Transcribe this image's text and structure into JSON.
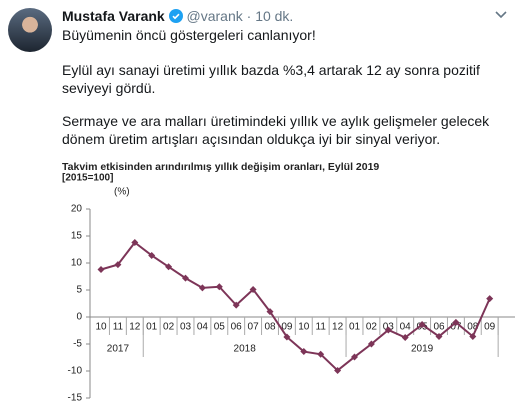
{
  "tweet": {
    "name": "Mustafa Varank",
    "handle": "@varank",
    "separator": "·",
    "time": "10 dk.",
    "paragraphs": [
      "Büyümenin öncü göstergeleri canlanıyor!",
      "Eylül ayı sanayi üretimi yıllık bazda %3,4 artarak 12 ay sonra pozitif seviyeyi gördü.",
      "Sermaye ve ara malları üretimindeki yıllık ve aylık gelişmeler gelecek dönem üretim artışları açısından oldukça iyi bir sinyal veriyor."
    ]
  },
  "chart_data": {
    "type": "line",
    "title": "Takvim etkisinden arındırılmış yıllık değişim oranları, Eylül 2019",
    "subtitle": "[2015=100]",
    "y_label": "(%)",
    "categories": [
      "10",
      "11",
      "12",
      "01",
      "02",
      "03",
      "04",
      "05",
      "06",
      "07",
      "08",
      "09",
      "10",
      "11",
      "12",
      "01",
      "02",
      "03",
      "04",
      "05",
      "06",
      "07",
      "08",
      "09"
    ],
    "year_groups": [
      {
        "label": "2017",
        "count": 3
      },
      {
        "label": "2018",
        "count": 12
      },
      {
        "label": "2019",
        "count": 9
      }
    ],
    "values": [
      8.8,
      9.7,
      13.8,
      11.4,
      9.3,
      7.2,
      5.4,
      5.6,
      2.2,
      5.1,
      1.0,
      -3.7,
      -6.4,
      -6.9,
      -9.9,
      -7.4,
      -5.0,
      -2.4,
      -3.8,
      -1.4,
      -3.6,
      -1.0,
      -3.6,
      3.4
    ],
    "color": "#7d3558",
    "ylim": [
      -15,
      20
    ],
    "yticks": [
      20,
      15,
      10,
      5,
      0,
      -5,
      -10,
      -15
    ],
    "grid": false
  }
}
